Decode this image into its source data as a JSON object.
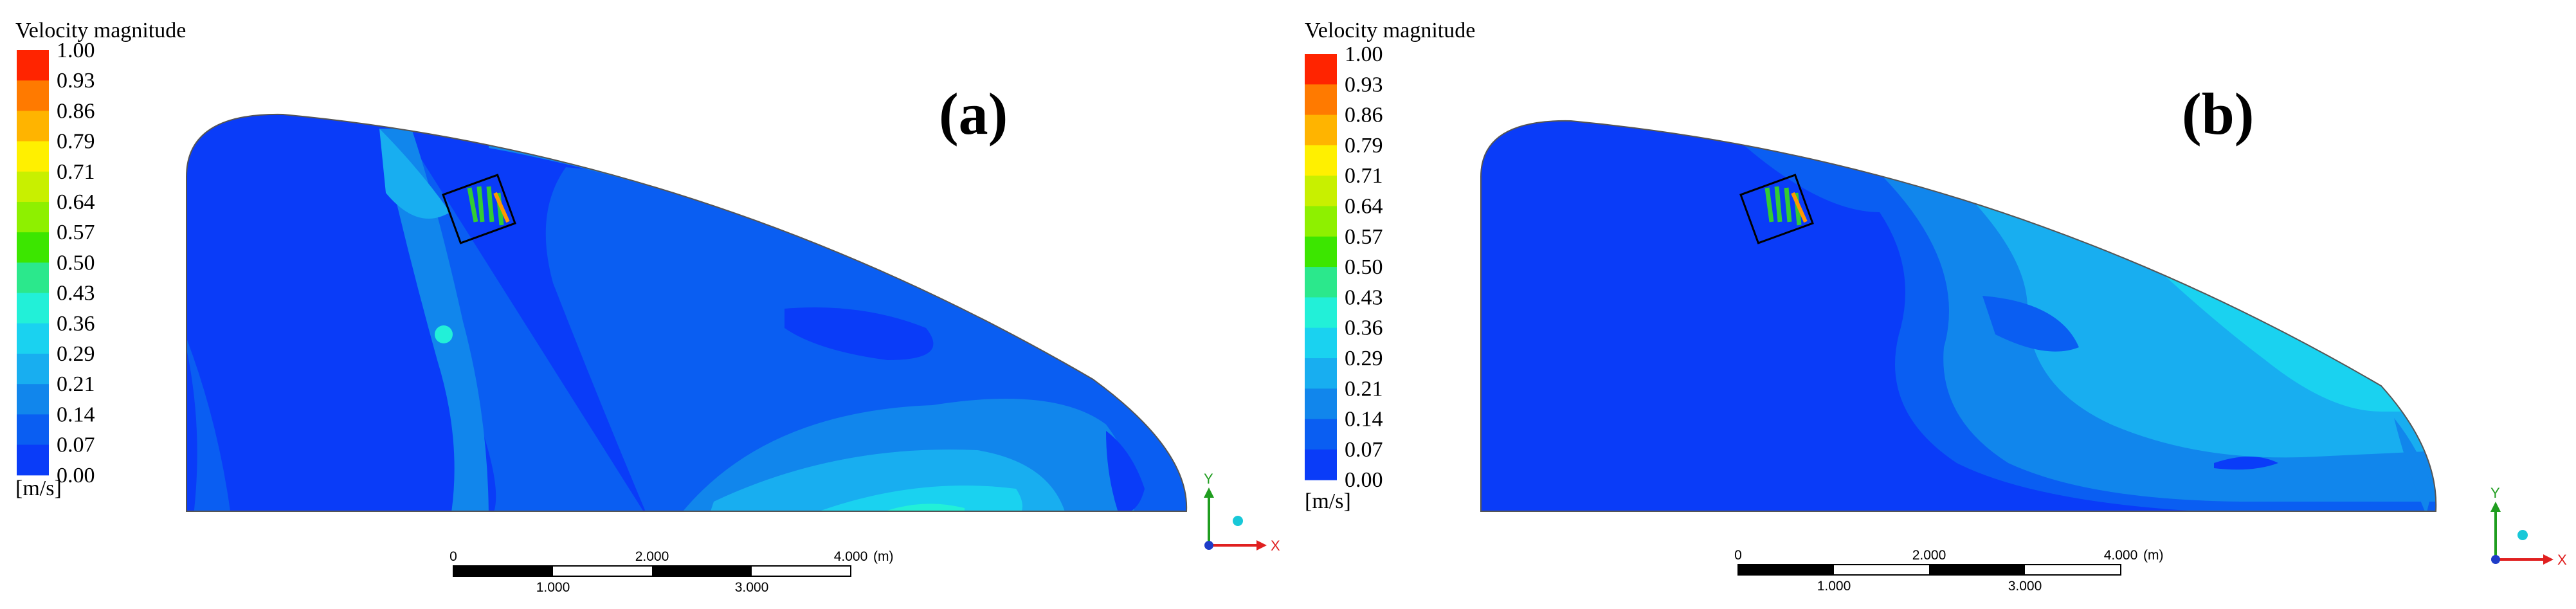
{
  "legend": {
    "title": "Velocity magnitude",
    "unit": "[m/s]",
    "ticks": [
      "1.00",
      "0.93",
      "0.86",
      "0.79",
      "0.71",
      "0.64",
      "0.57",
      "0.50",
      "0.43",
      "0.36",
      "0.29",
      "0.21",
      "0.14",
      "0.07",
      "0.00"
    ],
    "colors": [
      "#ff2400",
      "#ff7a00",
      "#ffb400",
      "#fff000",
      "#c8f000",
      "#8ef000",
      "#3ce600",
      "#2be88c",
      "#22f0d8",
      "#1ad2f0",
      "#18aef0",
      "#1186ec",
      "#0a5ef2",
      "#0a3cf8"
    ]
  },
  "scale_bar": {
    "top_labels": [
      "0",
      "2.000",
      "4.000",
      "(m)"
    ],
    "bottom_labels": [
      "1.000",
      "3.000"
    ]
  },
  "axes": {
    "y_label": "Y",
    "x_label": "X"
  },
  "panels": [
    {
      "label": "(a)"
    },
    {
      "label": "(b)"
    }
  ]
}
